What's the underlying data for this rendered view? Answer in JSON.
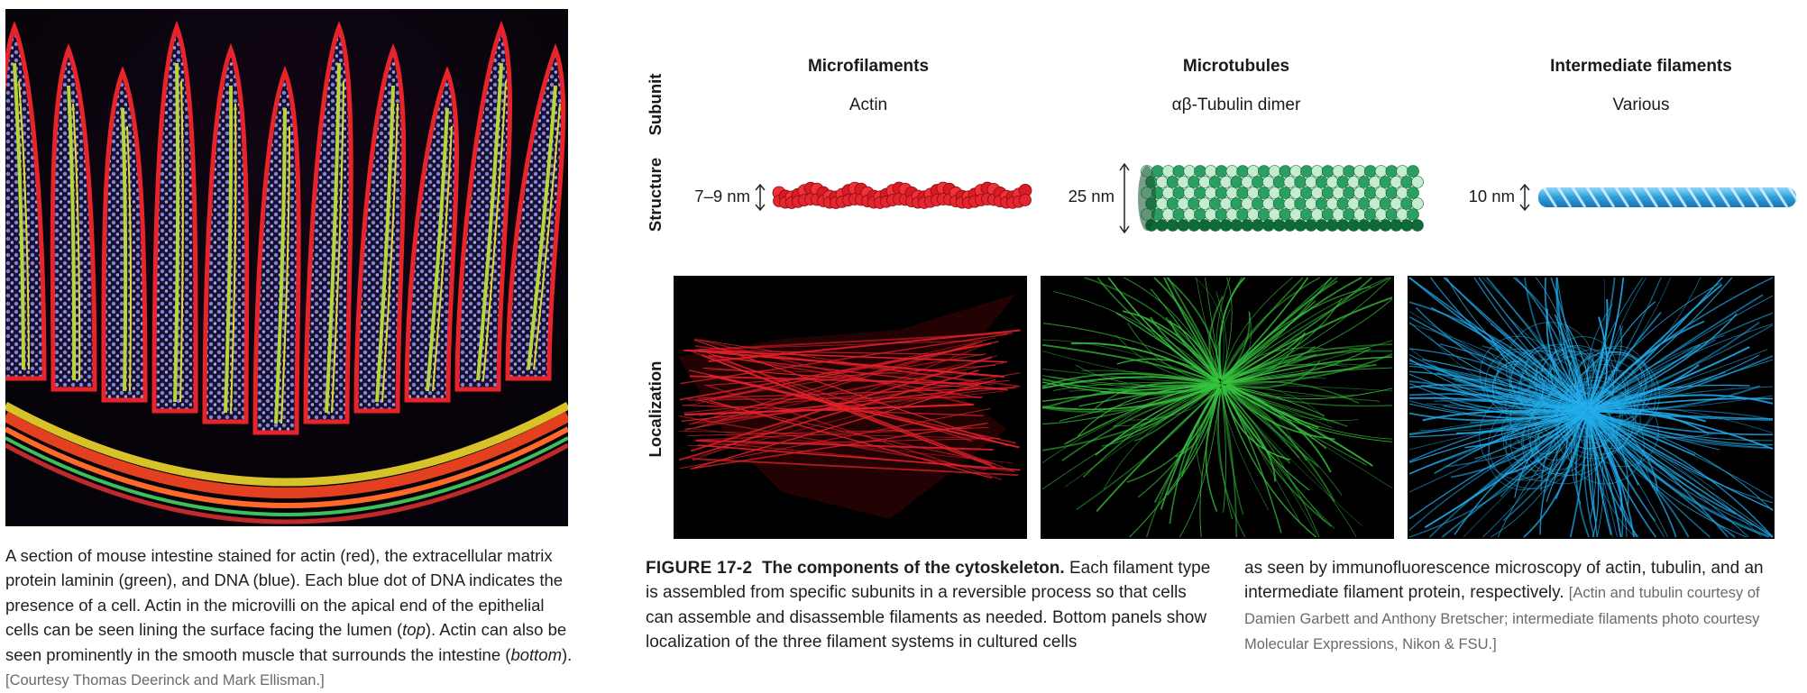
{
  "left_figure": {
    "image_label": "Mouse intestine section micrograph",
    "caption_parts": [
      "A section of mouse intestine stained for actin (red), the extracellular matrix protein laminin (green), and DNA (blue). Each blue dot of DNA indicates the presence of a cell. Actin in the microvilli on the apical end of the epithelial cells can be seen lining the surface facing the lumen (",
      "top",
      "). Actin can also be seen prominently in the smooth muscle that surrounds the intestine (",
      "bottom",
      ")."
    ],
    "credit": "[Courtesy Thomas Deerinck and Mark Ellisman.]"
  },
  "figure": {
    "row_labels": {
      "subunit": "Subunit",
      "structure": "Structure",
      "localization": "Localization"
    },
    "columns": [
      {
        "title": "Microfilaments",
        "subunit": "Actin",
        "diameter": "7–9 nm",
        "color": "#e01f2a"
      },
      {
        "title": "Microtubules",
        "subunit": "αβ-Tubulin dimer",
        "diameter": "25 nm",
        "color": "#1f9a5a"
      },
      {
        "title": "Intermediate filaments",
        "subunit": "Various",
        "diameter": "10 nm",
        "color": "#2aa6e0"
      }
    ],
    "caption": {
      "number": "FIGURE 17-2",
      "title": "The components of the cytoskeleton.",
      "body_1": "Each filament type is assembled from specific subunits in a reversible process so that cells can assemble and disassemble filaments as needed. Bottom panels show localization of the three filament systems in cultured cells",
      "body_2": "as seen by immunofluorescence microscopy of actin, tubulin, and an intermediate filament protein, respectively.",
      "credit": "[Actin and tubulin courtesy of Damien Garbett and Anthony Bretscher; intermediate filaments photo courtesy Molecular Expressions, Nikon & FSU.]"
    }
  }
}
